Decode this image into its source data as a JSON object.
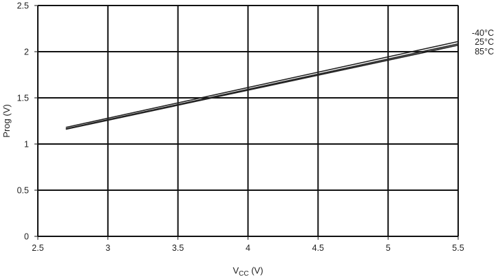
{
  "chart_data": {
    "type": "line",
    "xlabel": {
      "main": "V",
      "sub": "CC",
      "unit": " (V)"
    },
    "ylabel": "Prog (V)",
    "xlim": [
      2.5,
      5.5
    ],
    "ylim": [
      0,
      2.5
    ],
    "xticks": [
      "2.5",
      "3",
      "3.5",
      "4",
      "4.5",
      "5",
      "5.5"
    ],
    "yticks": [
      "0",
      "0.5",
      "1",
      "1.5",
      "2",
      "2.5"
    ],
    "grid": true,
    "series": [
      {
        "name": "-40°C",
        "x": [
          2.7,
          5.5
        ],
        "y": [
          1.18,
          2.11
        ]
      },
      {
        "name": "25°C",
        "x": [
          2.7,
          5.5
        ],
        "y": [
          1.165,
          2.085
        ]
      },
      {
        "name": "85°C",
        "x": [
          2.7,
          5.5
        ],
        "y": [
          1.16,
          2.07
        ]
      }
    ],
    "line_color": "#222222",
    "grid_color": "#111111"
  }
}
